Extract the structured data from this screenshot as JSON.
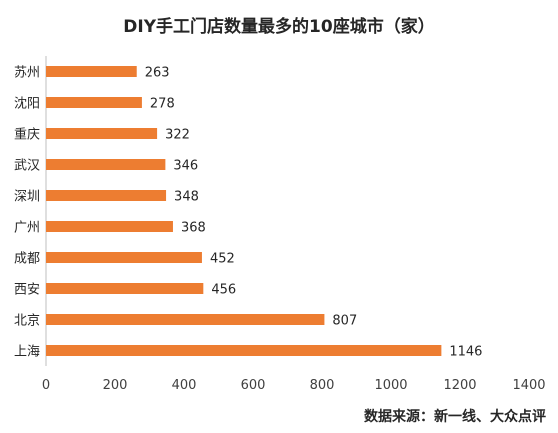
{
  "chart_data": {
    "type": "bar",
    "orientation": "horizontal",
    "title": "DIY手工门店数量最多的10座城市（家）",
    "categories": [
      "苏州",
      "沈阳",
      "重庆",
      "武汉",
      "深圳",
      "广州",
      "成都",
      "西安",
      "北京",
      "上海"
    ],
    "values": [
      263,
      278,
      322,
      346,
      348,
      368,
      452,
      456,
      807,
      1146
    ],
    "xlim": [
      0,
      1400
    ],
    "xticks": [
      0,
      200,
      400,
      600,
      800,
      1000,
      1200,
      1400
    ],
    "bar_color": "#ED7D31",
    "grid": false,
    "legend": "none"
  },
  "source": "数据来源：新一线、大众点评"
}
